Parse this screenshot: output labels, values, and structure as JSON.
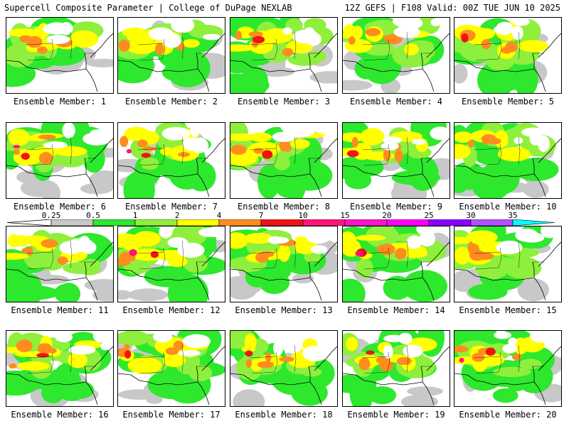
{
  "header": {
    "left_title": "Supercell Composite Parameter | College of DuPage NEXLAB",
    "right_title": "12Z GEFS | F108 Valid: 00Z TUE JUN 10 2025"
  },
  "members": [
    {
      "label": "Ensemble Member: 1",
      "number": 1,
      "peak": "orange"
    },
    {
      "label": "Ensemble Member: 2",
      "number": 2,
      "peak": "orange"
    },
    {
      "label": "Ensemble Member: 3",
      "number": 3,
      "peak": "red"
    },
    {
      "label": "Ensemble Member: 4",
      "number": 4,
      "peak": "orange"
    },
    {
      "label": "Ensemble Member: 5",
      "number": 5,
      "peak": "red"
    },
    {
      "label": "Ensemble Member: 6",
      "number": 6,
      "peak": "magenta"
    },
    {
      "label": "Ensemble Member: 7",
      "number": 7,
      "peak": "magenta"
    },
    {
      "label": "Ensemble Member: 8",
      "number": 8,
      "peak": "red"
    },
    {
      "label": "Ensemble Member: 9",
      "number": 9,
      "peak": "red"
    },
    {
      "label": "Ensemble Member: 10",
      "number": 10,
      "peak": "orange"
    },
    {
      "label": "Ensemble Member: 11",
      "number": 11,
      "peak": "orange"
    },
    {
      "label": "Ensemble Member: 12",
      "number": 12,
      "peak": "magenta"
    },
    {
      "label": "Ensemble Member: 13",
      "number": 13,
      "peak": "orange"
    },
    {
      "label": "Ensemble Member: 14",
      "number": 14,
      "peak": "magenta"
    },
    {
      "label": "Ensemble Member: 15",
      "number": 15,
      "peak": "orange"
    },
    {
      "label": "Ensemble Member: 16",
      "number": 16,
      "peak": "red"
    },
    {
      "label": "Ensemble Member: 17",
      "number": 17,
      "peak": "red"
    },
    {
      "label": "Ensemble Member: 18",
      "number": 18,
      "peak": "red"
    },
    {
      "label": "Ensemble Member: 19",
      "number": 19,
      "peak": "red"
    },
    {
      "label": "Ensemble Member: 20",
      "number": 20,
      "peak": "magenta"
    }
  ],
  "colorbar": {
    "ticks": [
      "0.25",
      "0.5",
      "1",
      "2",
      "4",
      "7",
      "10",
      "15",
      "20",
      "25",
      "30",
      "35"
    ],
    "colors": [
      "#c8c8c8",
      "#2ee82e",
      "#8ef03c",
      "#ffff00",
      "#ff8c1e",
      "#f01414",
      "#ff1478",
      "#ff14c8",
      "#ff00ff",
      "#8c00ff",
      "#b450ff",
      "#00ffff"
    ]
  }
}
